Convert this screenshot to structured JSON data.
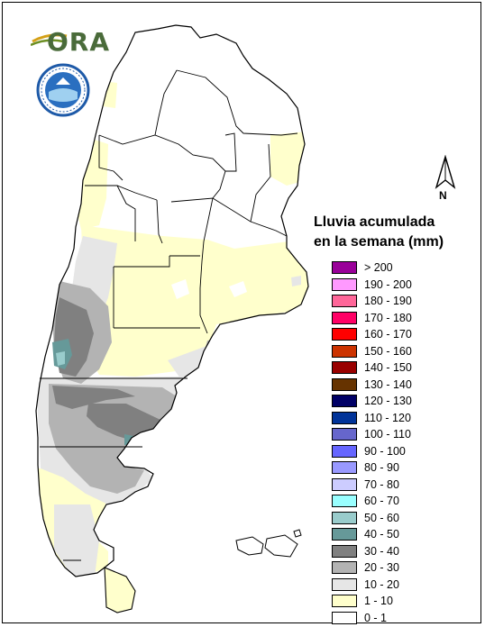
{
  "legend": {
    "title_line1": "Lluvia acumulada",
    "title_line2": "en la semana (mm)",
    "classes": [
      {
        "label": "> 200",
        "color": "#990099"
      },
      {
        "label": "190 - 200",
        "color": "#ff99ff"
      },
      {
        "label": "180 - 190",
        "color": "#ff6699"
      },
      {
        "label": "170 - 180",
        "color": "#ff0066"
      },
      {
        "label": "160 - 170",
        "color": "#ff0000"
      },
      {
        "label": "150 - 160",
        "color": "#cc3300"
      },
      {
        "label": "140 - 150",
        "color": "#990000"
      },
      {
        "label": "130 - 140",
        "color": "#663300"
      },
      {
        "label": "120 - 130",
        "color": "#000066"
      },
      {
        "label": "110 - 120",
        "color": "#003399"
      },
      {
        "label": "100 - 110",
        "color": "#6666cc"
      },
      {
        "label": "90 - 100",
        "color": "#6666ff"
      },
      {
        "label": "80 - 90",
        "color": "#9999ff"
      },
      {
        "label": "70 - 80",
        "color": "#ccccff"
      },
      {
        "label": "60 - 70",
        "color": "#99ffff"
      },
      {
        "label": "50 - 60",
        "color": "#99cccc"
      },
      {
        "label": "40 - 50",
        "color": "#669999"
      },
      {
        "label": "30 - 40",
        "color": "#808080"
      },
      {
        "label": "20 - 30",
        "color": "#b3b3b3"
      },
      {
        "label": "10 - 20",
        "color": "#e6e6e6"
      },
      {
        "label": "1 - 10",
        "color": "#ffffcc"
      },
      {
        "label": "0 - 1",
        "color": "#ffffff"
      }
    ]
  },
  "logo": {
    "ora_text": "ORA"
  },
  "north_arrow": {
    "label": "N"
  }
}
